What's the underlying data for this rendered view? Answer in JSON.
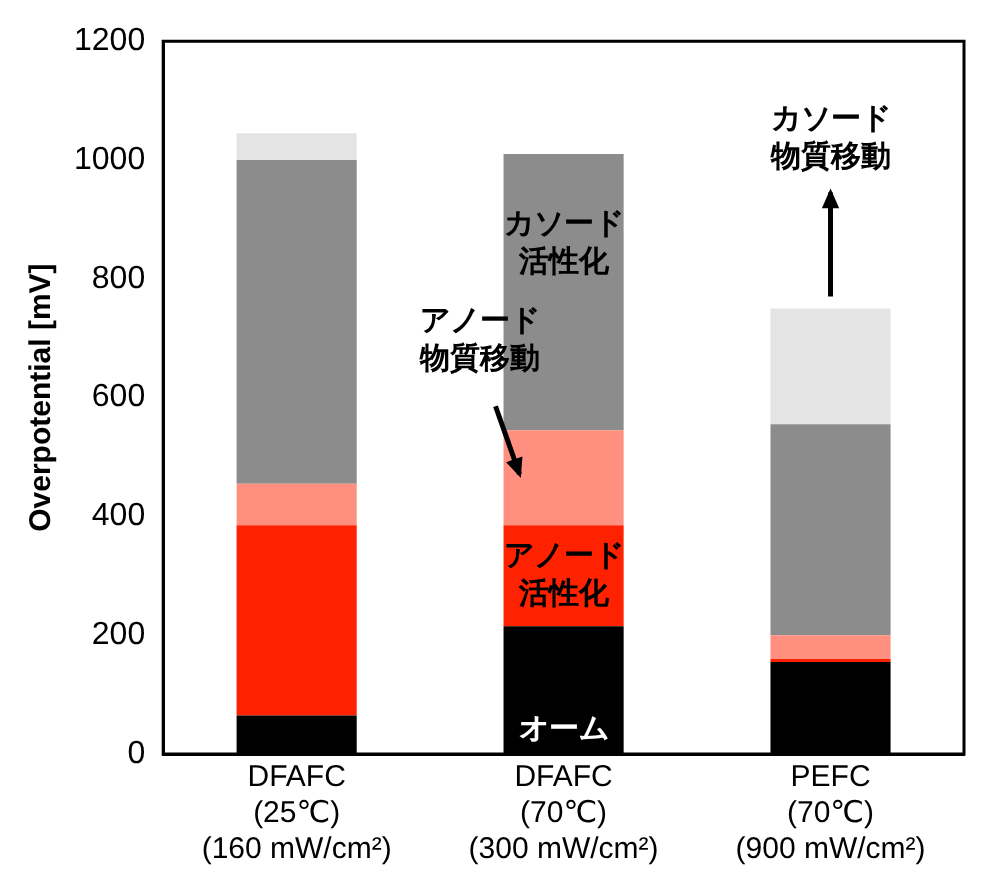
{
  "chart_data": {
    "type": "bar",
    "stacked": true,
    "ylabel": "Overpotential [mV]",
    "categories": [
      "DFAFC\n(25℃)\n(160 mW/cm²)",
      "DFAFC\n(70℃)\n(300 mW/cm²)",
      "PEFC\n(70℃)\n(900 mW/cm²)"
    ],
    "ylim": [
      0,
      1200
    ],
    "yticks": [
      0,
      200,
      400,
      600,
      800,
      1000,
      1200
    ],
    "grid": false,
    "legend": false,
    "series": [
      {
        "name": "オーム",
        "color": "#000000",
        "values": [
          65,
          215,
          155
        ]
      },
      {
        "name": "アノード活性化",
        "color": "#ff2200",
        "values": [
          320,
          170,
          5
        ]
      },
      {
        "name": "アノード物質移動",
        "color": "#ff9080",
        "values": [
          70,
          160,
          40
        ]
      },
      {
        "name": "カソード活性化",
        "color": "#8c8c8c",
        "values": [
          545,
          465,
          355
        ]
      },
      {
        "name": "カソード物質移動",
        "color": "#e4e4e4",
        "values": [
          45,
          0,
          195
        ]
      }
    ]
  }
}
